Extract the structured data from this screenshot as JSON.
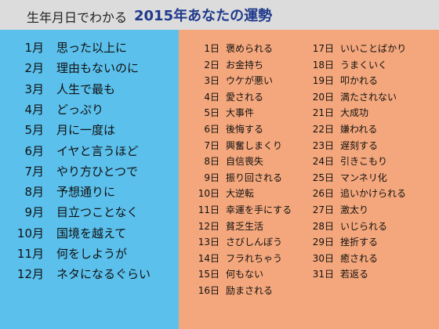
{
  "header": {
    "prefix": "生年月日でわかる",
    "title": "2015年あなたの運勢"
  },
  "months": [
    {
      "month": "1月",
      "text": "思った以上に"
    },
    {
      "month": "2月",
      "text": "理由もないのに"
    },
    {
      "month": "3月",
      "text": "人生で最も"
    },
    {
      "month": "4月",
      "text": "どっぷり"
    },
    {
      "month": "5月",
      "text": "月に一度は"
    },
    {
      "month": "6月",
      "text": "イヤと言うほど"
    },
    {
      "month": "7月",
      "text": "やり方ひとつで"
    },
    {
      "month": "8月",
      "text": "予想通りに"
    },
    {
      "month": "9月",
      "text": "目立つことなく"
    },
    {
      "month": "10月",
      "text": "国境を越えて"
    },
    {
      "month": "11月",
      "text": "何をしようが"
    },
    {
      "month": "12月",
      "text": "ネタになるぐらい"
    }
  ],
  "days": [
    {
      "day": "1日",
      "text": "褒められる"
    },
    {
      "day": "2日",
      "text": "お金持ち"
    },
    {
      "day": "3日",
      "text": "ウケが悪い"
    },
    {
      "day": "4日",
      "text": "愛される"
    },
    {
      "day": "5日",
      "text": "大事件"
    },
    {
      "day": "6日",
      "text": "後悔する"
    },
    {
      "day": "7日",
      "text": "興奮しまくり"
    },
    {
      "day": "8日",
      "text": "自信喪失"
    },
    {
      "day": "9日",
      "text": "振り回される"
    },
    {
      "day": "10日",
      "text": "大逆転"
    },
    {
      "day": "11日",
      "text": "幸運を手にする"
    },
    {
      "day": "12日",
      "text": "貧乏生活"
    },
    {
      "day": "13日",
      "text": "さびしんぼう"
    },
    {
      "day": "14日",
      "text": "フラれちゃう"
    },
    {
      "day": "15日",
      "text": "何もない"
    },
    {
      "day": "16日",
      "text": "励まされる"
    },
    {
      "day": "17日",
      "text": "いいことばかり"
    },
    {
      "day": "18日",
      "text": "うまくいく"
    },
    {
      "day": "19日",
      "text": "叩かれる"
    },
    {
      "day": "20日",
      "text": "満たされない"
    },
    {
      "day": "21日",
      "text": "大成功"
    },
    {
      "day": "22日",
      "text": "嫌われる"
    },
    {
      "day": "23日",
      "text": "遅刻する"
    },
    {
      "day": "24日",
      "text": "引きこもり"
    },
    {
      "day": "25日",
      "text": "マンネリ化"
    },
    {
      "day": "26日",
      "text": "追いかけられる"
    },
    {
      "day": "27日",
      "text": "激太り"
    },
    {
      "day": "28日",
      "text": "いじられる"
    },
    {
      "day": "29日",
      "text": "挫折する"
    },
    {
      "day": "30日",
      "text": "癒される"
    },
    {
      "day": "31日",
      "text": "若返る"
    }
  ],
  "colors": {
    "header_bg": "#dcdcdc",
    "title_color": "#203a8c",
    "left_panel_bg": "#5bc0ec",
    "right_panel_bg": "#f4a77c"
  }
}
